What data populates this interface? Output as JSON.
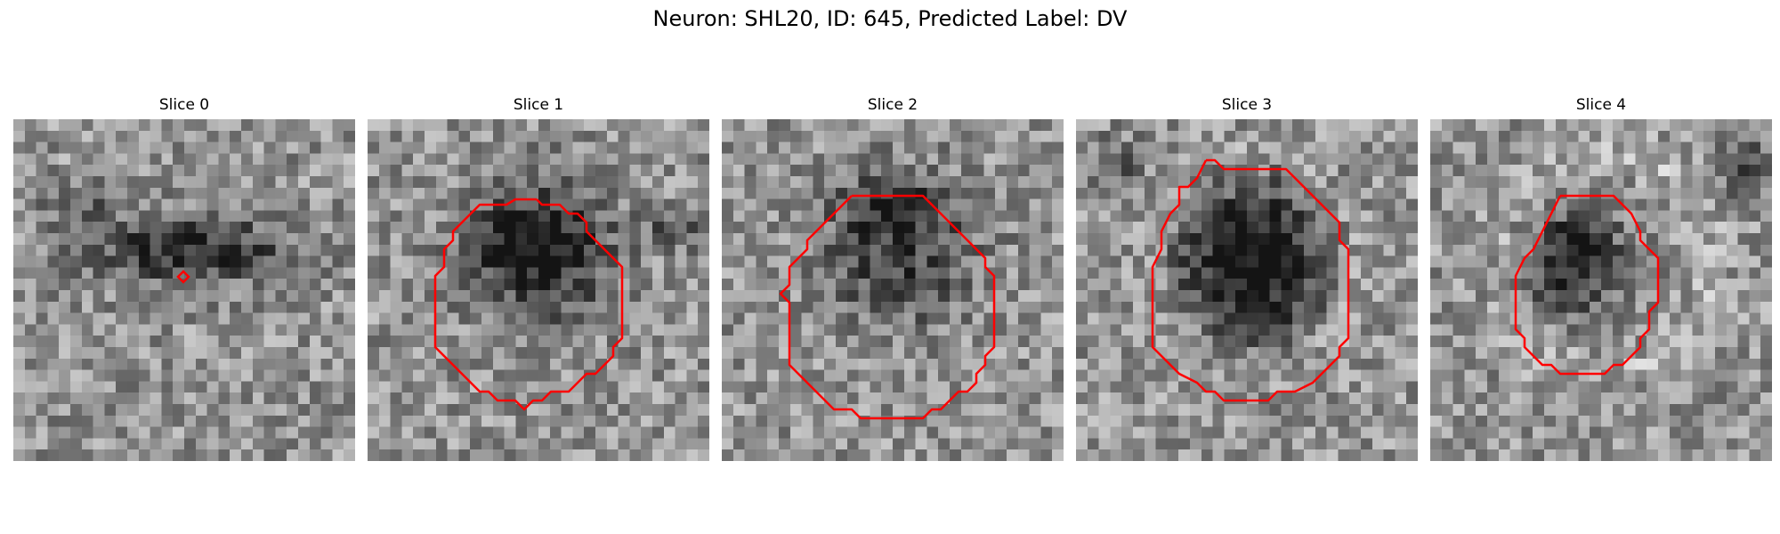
{
  "figure": {
    "title": "Neuron: SHL20, ID: 645, Predicted Label: DV"
  },
  "contour_color": "#ff0000",
  "panels": [
    {
      "title": "Slice 0",
      "contour": "marker"
    },
    {
      "title": "Slice 1",
      "contour": "polygon"
    },
    {
      "title": "Slice 2",
      "contour": "polygon"
    },
    {
      "title": "Slice 3",
      "contour": "polygon"
    },
    {
      "title": "Slice 4",
      "contour": "polygon"
    }
  ]
}
